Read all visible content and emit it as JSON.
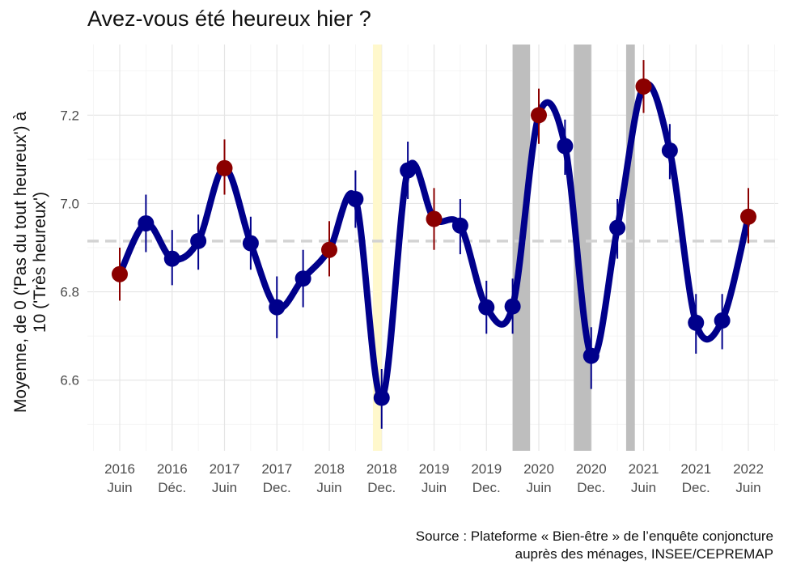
{
  "chart_data": {
    "type": "line",
    "title": "Avez-vous été heureux hier ?",
    "ylabel_lines": [
      "Moyenne, de 0 ('Pas du tout heureux') à",
      "10 ('Très heureux')"
    ],
    "ylim": [
      6.44,
      7.36
    ],
    "yticks": [
      6.6,
      6.8,
      7.0,
      7.2
    ],
    "xticks": [
      {
        "year": "2016",
        "period": "Juin"
      },
      {
        "year": "2016",
        "period": "Déc."
      },
      {
        "year": "2017",
        "period": "Juin"
      },
      {
        "year": "2017",
        "period": "Dec."
      },
      {
        "year": "2018",
        "period": "Juin"
      },
      {
        "year": "2018",
        "period": "Dec."
      },
      {
        "year": "2019",
        "period": "Juin"
      },
      {
        "year": "2019",
        "period": "Dec."
      },
      {
        "year": "2020",
        "period": "Juin"
      },
      {
        "year": "2020",
        "period": "Dec."
      },
      {
        "year": "2021",
        "period": "Juin"
      },
      {
        "year": "2021",
        "period": "Dec."
      },
      {
        "year": "2022",
        "period": "Juin"
      }
    ],
    "reference_line": 6.915,
    "shaded_periods": [
      {
        "start": "2018-11",
        "end": "2018-12",
        "color": "#fff8cc"
      },
      {
        "start": "2020-03",
        "end": "2020-05",
        "color": "#bebebe"
      },
      {
        "start": "2020-10",
        "end": "2020-12",
        "color": "#bebebe"
      },
      {
        "start": "2021-04",
        "end": "2021-05",
        "color": "#bebebe"
      }
    ],
    "series": [
      {
        "color": "#00008b",
        "highlight_color": "#8b0000",
        "points": [
          {
            "x": "2016-06",
            "y": 6.84,
            "lo": 6.78,
            "hi": 6.9,
            "highlight": true
          },
          {
            "x": "2016-09",
            "y": 6.955,
            "lo": 6.89,
            "hi": 7.02,
            "highlight": false
          },
          {
            "x": "2016-12",
            "y": 6.875,
            "lo": 6.815,
            "hi": 6.94,
            "highlight": false
          },
          {
            "x": "2017-03",
            "y": 6.915,
            "lo": 6.85,
            "hi": 6.975,
            "highlight": false
          },
          {
            "x": "2017-06",
            "y": 7.08,
            "lo": 7.02,
            "hi": 7.145,
            "highlight": true
          },
          {
            "x": "2017-09",
            "y": 6.91,
            "lo": 6.85,
            "hi": 6.97,
            "highlight": false
          },
          {
            "x": "2017-12",
            "y": 6.765,
            "lo": 6.695,
            "hi": 6.835,
            "highlight": false
          },
          {
            "x": "2018-03",
            "y": 6.83,
            "lo": 6.765,
            "hi": 6.895,
            "highlight": false
          },
          {
            "x": "2018-06",
            "y": 6.895,
            "lo": 6.835,
            "hi": 6.96,
            "highlight": true
          },
          {
            "x": "2018-09",
            "y": 7.01,
            "lo": 6.945,
            "hi": 7.075,
            "highlight": false
          },
          {
            "x": "2018-12",
            "y": 6.56,
            "lo": 6.49,
            "hi": 6.625,
            "highlight": false
          },
          {
            "x": "2019-03",
            "y": 7.075,
            "lo": 7.01,
            "hi": 7.14,
            "highlight": false
          },
          {
            "x": "2019-06",
            "y": 6.965,
            "lo": 6.895,
            "hi": 7.035,
            "highlight": true
          },
          {
            "x": "2019-09",
            "y": 6.95,
            "lo": 6.885,
            "hi": 7.01,
            "highlight": false
          },
          {
            "x": "2019-12",
            "y": 6.765,
            "lo": 6.705,
            "hi": 6.825,
            "highlight": false
          },
          {
            "x": "2020-03",
            "y": 6.767,
            "lo": 6.705,
            "hi": 6.83,
            "highlight": false
          },
          {
            "x": "2020-06",
            "y": 7.2,
            "lo": 7.135,
            "hi": 7.26,
            "highlight": true
          },
          {
            "x": "2020-09",
            "y": 7.13,
            "lo": 7.065,
            "hi": 7.19,
            "highlight": false
          },
          {
            "x": "2020-12",
            "y": 6.655,
            "lo": 6.58,
            "hi": 6.72,
            "highlight": false
          },
          {
            "x": "2021-03",
            "y": 6.945,
            "lo": 6.875,
            "hi": 7.01,
            "highlight": false
          },
          {
            "x": "2021-06",
            "y": 7.265,
            "lo": 7.205,
            "hi": 7.325,
            "highlight": true
          },
          {
            "x": "2021-09",
            "y": 7.12,
            "lo": 7.055,
            "hi": 7.18,
            "highlight": false
          },
          {
            "x": "2021-12",
            "y": 6.73,
            "lo": 6.66,
            "hi": 6.795,
            "highlight": false
          },
          {
            "x": "2022-03",
            "y": 6.735,
            "lo": 6.67,
            "hi": 6.795,
            "highlight": false
          },
          {
            "x": "2022-06",
            "y": 6.97,
            "lo": 6.91,
            "hi": 7.035,
            "highlight": true
          }
        ]
      }
    ]
  },
  "source": {
    "line1": "Source : Plateforme « Bien-être » de l’enquête conjoncture",
    "line2": "auprès des ménages, INSEE/CEPREMAP"
  }
}
